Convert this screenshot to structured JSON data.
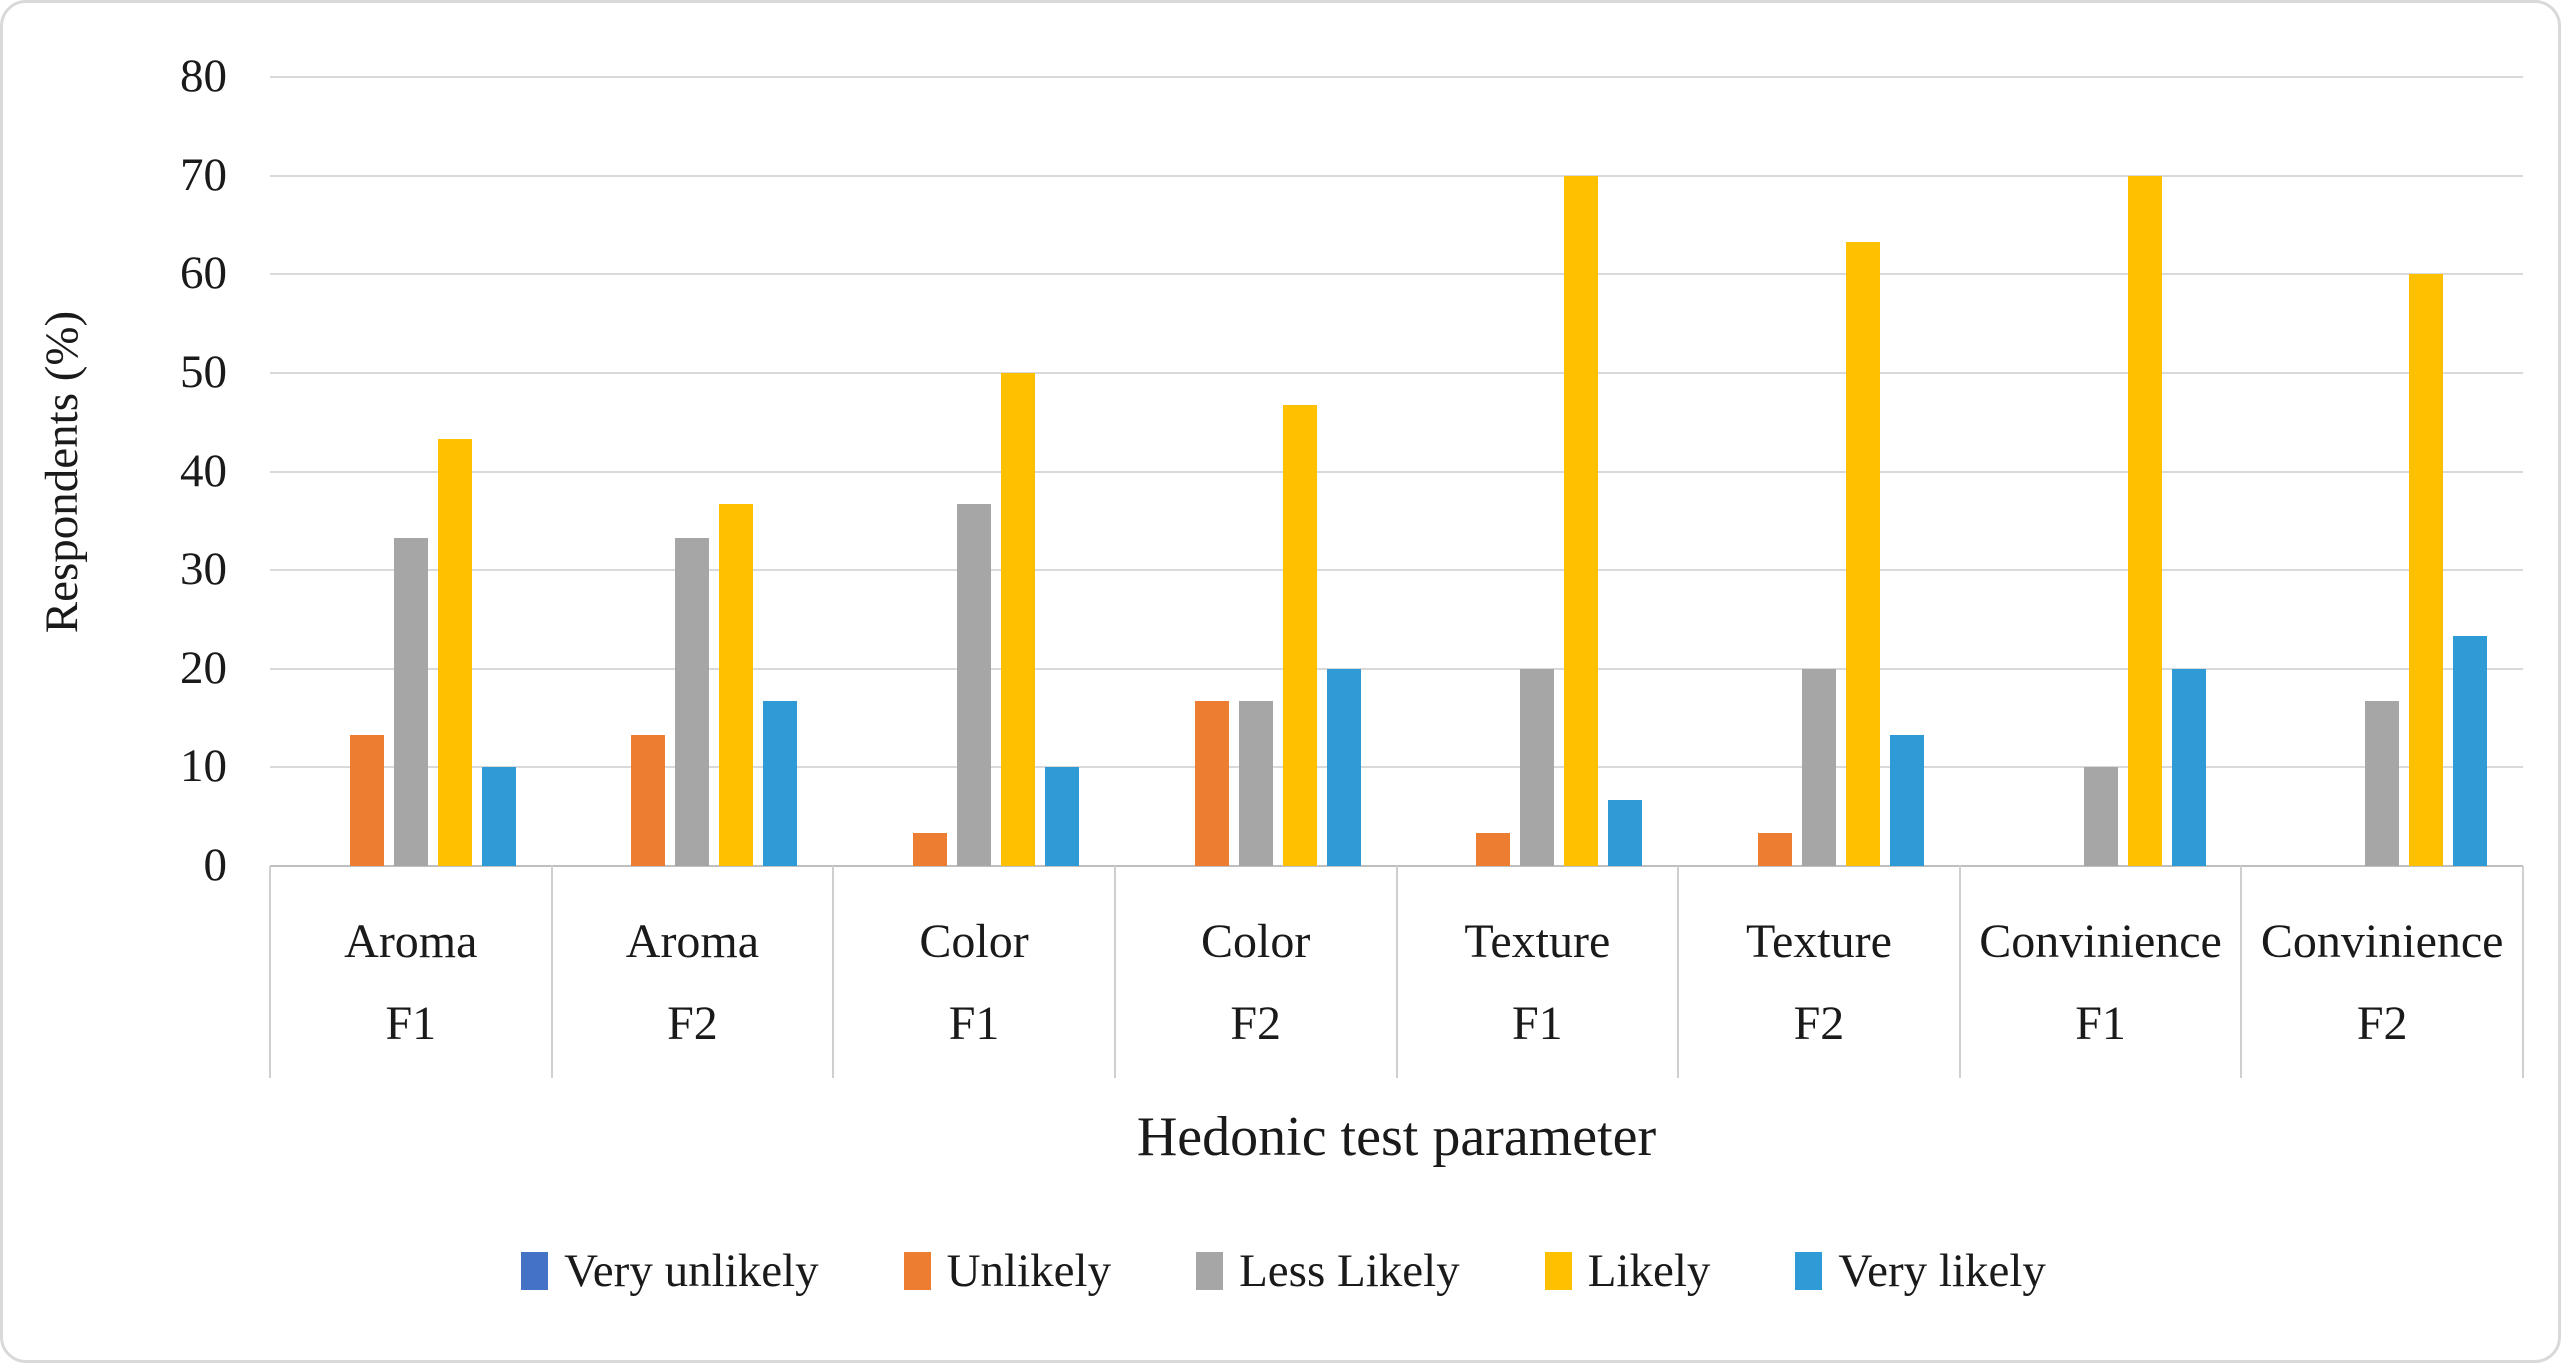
{
  "chart_data": {
    "type": "bar",
    "title": "",
    "xlabel": "Hedonic test parameter",
    "ylabel": "Respondents (%)",
    "ylim": [
      0,
      80
    ],
    "yticks": [
      0,
      10,
      20,
      30,
      40,
      50,
      60,
      70,
      80
    ],
    "grid": true,
    "legend_position": "bottom",
    "categories": [
      {
        "parameter": "Aroma",
        "formulation": "F1"
      },
      {
        "parameter": "Aroma",
        "formulation": "F2"
      },
      {
        "parameter": "Color",
        "formulation": "F1"
      },
      {
        "parameter": "Color",
        "formulation": "F2"
      },
      {
        "parameter": "Texture",
        "formulation": "F1"
      },
      {
        "parameter": "Texture",
        "formulation": "F2"
      },
      {
        "parameter": "Convinience",
        "formulation": "F1"
      },
      {
        "parameter": "Convinience",
        "formulation": "F2"
      }
    ],
    "series": [
      {
        "name": "Very unlikely",
        "color": "#4472C4",
        "values": [
          0,
          0,
          0,
          0,
          0,
          0,
          0,
          0
        ]
      },
      {
        "name": "Unlikely",
        "color": "#ED7D31",
        "values": [
          13.3,
          13.3,
          3.3,
          16.7,
          3.3,
          3.3,
          0,
          0
        ]
      },
      {
        "name": "Less Likely",
        "color": "#A6A6A6",
        "values": [
          33.3,
          33.3,
          36.7,
          16.7,
          20,
          20,
          10,
          16.7
        ]
      },
      {
        "name": "Likely",
        "color": "#FFC000",
        "values": [
          43.3,
          36.7,
          50,
          46.7,
          70,
          63.3,
          70,
          60
        ]
      },
      {
        "name": "Very likely",
        "color": "#2E9BD6",
        "values": [
          10,
          16.7,
          10,
          20,
          6.7,
          13.3,
          20,
          23.3
        ]
      }
    ],
    "colors": {
      "gridline": "#D9D9D9",
      "axis_line": "#BFBFBF",
      "divider": "#CFCFCF",
      "text": "#1A1A1A"
    }
  }
}
